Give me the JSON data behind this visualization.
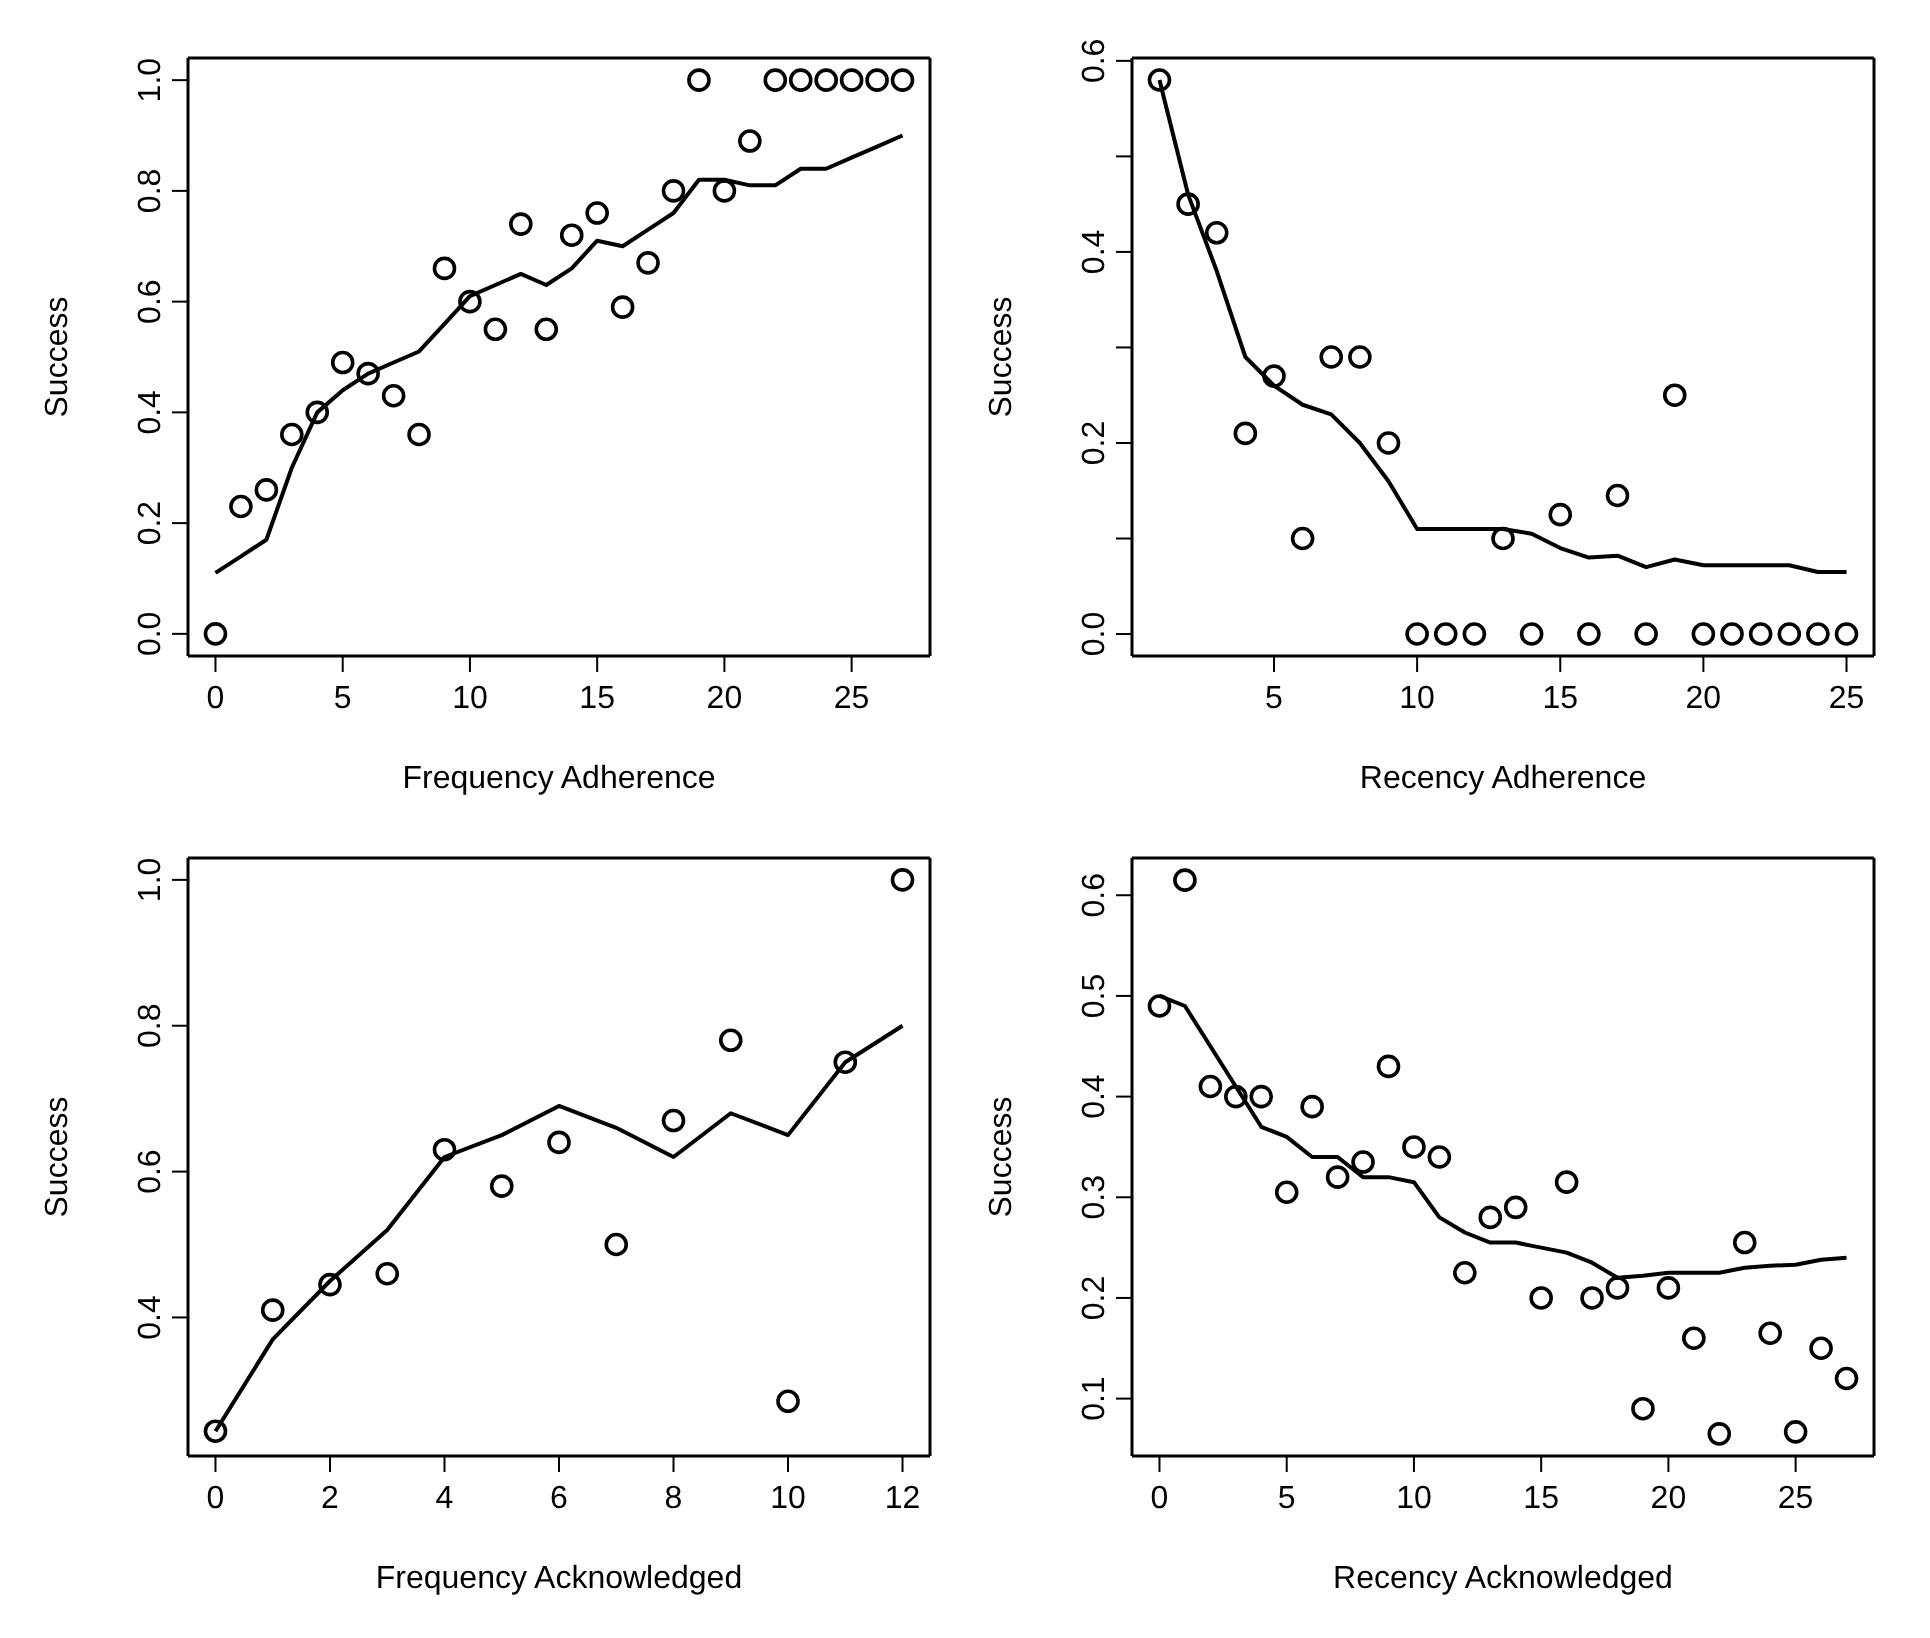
{
  "chart_data": [
    {
      "type": "scatter",
      "xlabel": "Frequency Adherence",
      "ylabel": "Success",
      "xlim": [
        -1.08,
        28.08
      ],
      "xticks": [
        0,
        5,
        10,
        15,
        20,
        25
      ],
      "ylim": [
        -0.04,
        1.04
      ],
      "yticks": [
        {
          "value": 0,
          "label": "0.0"
        },
        0.2,
        0.4,
        0.6,
        0.8,
        {
          "value": 1,
          "label": "1.0"
        }
      ],
      "grid": false,
      "legend": false,
      "x": [
        0,
        1,
        2,
        3,
        4,
        5,
        6,
        7,
        8,
        9,
        10,
        11,
        12,
        13,
        14,
        15,
        16,
        17,
        18,
        19,
        20,
        21,
        22,
        23,
        24,
        25,
        26,
        27
      ],
      "series": [
        {
          "marker": "circle",
          "color": "#000000",
          "values": [
            0,
            0.23,
            0.26,
            0.36,
            0.4,
            0.49,
            0.47,
            0.43,
            0.36,
            0.66,
            0.6,
            0.55,
            0.74,
            0.55,
            0.72,
            0.76,
            0.59,
            0.67,
            0.8,
            1.0,
            0.8,
            0.89,
            1,
            1,
            1,
            1,
            1,
            1
          ]
        },
        {
          "type": "line",
          "color": "#000000",
          "values": [
            0.11,
            0.14,
            0.17,
            0.3,
            0.4,
            0.44,
            0.47,
            0.49,
            0.51,
            0.56,
            0.61,
            0.63,
            0.65,
            0.63,
            0.66,
            0.71,
            0.7,
            0.73,
            0.76,
            0.82,
            0.82,
            0.81,
            0.81,
            0.84,
            0.84,
            0.86,
            0.88,
            0.9
          ]
        }
      ]
    },
    {
      "type": "scatter",
      "xlabel": "Recency Adherence",
      "ylabel": "Success",
      "xlim": [
        0.04,
        25.96
      ],
      "xticks": [
        5,
        10,
        15,
        20,
        25
      ],
      "ylim": [
        -0.023,
        0.603
      ],
      "yticks": [
        {
          "value": 0,
          "label": "0.0"
        },
        {
          "value": 0.1,
          "label": null
        },
        0.2,
        {
          "value": 0.3,
          "label": null
        },
        0.4,
        {
          "value": 0.5,
          "label": null
        },
        0.6
      ],
      "grid": false,
      "legend": false,
      "x": [
        1,
        2,
        3,
        4,
        5,
        6,
        7,
        8,
        9,
        10,
        11,
        12,
        13,
        14,
        15,
        16,
        17,
        18,
        19,
        20,
        21,
        22,
        23,
        24,
        25
      ],
      "series": [
        {
          "marker": "circle",
          "color": "#000000",
          "values": [
            0.58,
            0.45,
            0.42,
            0.21,
            0.27,
            0.1,
            0.29,
            0.29,
            0.2,
            0,
            0,
            0,
            0.1,
            0,
            0.125,
            0,
            0.145,
            0,
            0.25,
            0,
            0,
            0,
            0,
            0,
            0
          ]
        },
        {
          "type": "line",
          "color": "#000000",
          "values": [
            0.58,
            0.46,
            0.38,
            0.29,
            0.26,
            0.24,
            0.23,
            0.2,
            0.16,
            0.11,
            0.11,
            0.11,
            0.11,
            0.105,
            0.09,
            0.08,
            0.082,
            0.07,
            0.078,
            0.072,
            0.072,
            0.072,
            0.072,
            0.065,
            0.065
          ]
        }
      ]
    },
    {
      "type": "scatter",
      "xlabel": "Frequency Acknowledged",
      "ylabel": "Success",
      "xlim": [
        -0.48,
        12.48
      ],
      "xticks": [
        0,
        2,
        4,
        6,
        8,
        10,
        12
      ],
      "ylim": [
        0.21,
        1.03
      ],
      "yticks": [
        0.4,
        0.6,
        0.8,
        {
          "value": 1,
          "label": "1.0"
        }
      ],
      "grid": false,
      "legend": false,
      "x": [
        0,
        1,
        2,
        3,
        4,
        5,
        6,
        7,
        8,
        9,
        10,
        11,
        12
      ],
      "series": [
        {
          "marker": "circle",
          "color": "#000000",
          "values": [
            0.244,
            0.41,
            0.445,
            0.46,
            0.63,
            0.58,
            0.64,
            0.5,
            0.67,
            0.78,
            0.285,
            0.75,
            1.0
          ]
        },
        {
          "type": "line",
          "color": "#000000",
          "values": [
            0.244,
            0.37,
            0.45,
            0.52,
            0.62,
            0.65,
            0.69,
            0.66,
            0.62,
            0.68,
            0.65,
            0.75,
            0.8
          ]
        }
      ]
    },
    {
      "type": "scatter",
      "xlabel": "Recency Acknowledged",
      "ylabel": "Success",
      "xlim": [
        -1.08,
        28.08
      ],
      "xticks": [
        0,
        5,
        10,
        15,
        20,
        25
      ],
      "ylim": [
        0.043,
        0.637
      ],
      "yticks": [
        0.1,
        0.2,
        0.3,
        0.4,
        0.5,
        0.6
      ],
      "grid": false,
      "legend": false,
      "x": [
        0,
        1,
        2,
        3,
        4,
        5,
        6,
        7,
        8,
        9,
        10,
        11,
        12,
        13,
        14,
        15,
        16,
        17,
        18,
        19,
        20,
        21,
        22,
        23,
        24,
        25,
        26,
        27
      ],
      "series": [
        {
          "marker": "circle",
          "color": "#000000",
          "values": [
            0.49,
            0.615,
            0.41,
            0.4,
            0.4,
            0.305,
            0.39,
            0.32,
            0.335,
            0.43,
            0.35,
            0.34,
            0.225,
            0.28,
            0.29,
            0.2,
            0.315,
            0.2,
            0.21,
            0.09,
            0.21,
            0.16,
            0.065,
            0.255,
            0.165,
            0.067,
            0.15,
            0.12
          ]
        },
        {
          "type": "line",
          "color": "#000000",
          "values": [
            0.5,
            0.49,
            0.45,
            0.41,
            0.37,
            0.36,
            0.34,
            0.34,
            0.32,
            0.32,
            0.315,
            0.28,
            0.265,
            0.255,
            0.255,
            0.25,
            0.245,
            0.235,
            0.22,
            0.222,
            0.225,
            0.225,
            0.225,
            0.23,
            0.232,
            0.233,
            0.238,
            0.24
          ]
        }
      ]
    }
  ]
}
